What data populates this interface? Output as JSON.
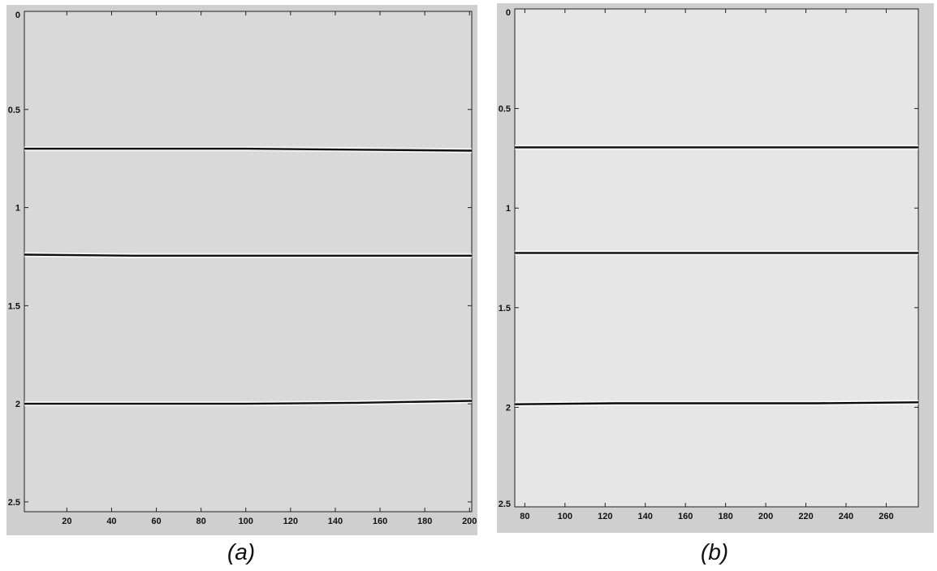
{
  "chart_data": [
    {
      "type": "line",
      "panel": "a",
      "caption": "(a)",
      "title": "",
      "xlabel": "",
      "ylabel": "",
      "y_axis_reversed": true,
      "xlim": [
        1,
        201
      ],
      "ylim": [
        0,
        2.55
      ],
      "x_ticks": [
        20,
        40,
        60,
        80,
        100,
        120,
        140,
        160,
        180,
        200
      ],
      "x_tick_labels": [
        "20",
        "40",
        "60",
        "80",
        "100",
        "120",
        "140",
        "160",
        "180",
        "200"
      ],
      "y_ticks": [
        0,
        0.5,
        1,
        1.5,
        2,
        2.5
      ],
      "y_tick_labels": [
        "0",
        "0.5",
        "1",
        "1.5",
        "2",
        "2.5"
      ],
      "grid": false,
      "background_color": "#d9d9d9",
      "line_color": "#111111",
      "series": [
        {
          "x": [
            1,
            50,
            100,
            150,
            201
          ],
          "y": [
            0.7,
            0.7,
            0.7,
            0.705,
            0.71
          ]
        },
        {
          "x": [
            1,
            50,
            100,
            150,
            201
          ],
          "y": [
            1.24,
            1.245,
            1.245,
            1.245,
            1.245
          ]
        },
        {
          "x": [
            1,
            50,
            100,
            150,
            201
          ],
          "y": [
            2.0,
            2.0,
            2.0,
            1.995,
            1.985
          ]
        }
      ]
    },
    {
      "type": "line",
      "panel": "b",
      "caption": "(b)",
      "title": "",
      "xlabel": "",
      "ylabel": "",
      "y_axis_reversed": true,
      "xlim": [
        75,
        276
      ],
      "ylim": [
        0,
        2.5
      ],
      "x_ticks": [
        80,
        100,
        120,
        140,
        160,
        180,
        200,
        220,
        240,
        260
      ],
      "x_tick_labels": [
        "80",
        "100",
        "120",
        "140",
        "160",
        "180",
        "200",
        "220",
        "240",
        "260"
      ],
      "y_ticks": [
        0,
        0.5,
        1,
        1.5,
        2,
        2.5
      ],
      "y_tick_labels": [
        "0",
        "0.5",
        "1",
        "1.5",
        "2",
        "2.5"
      ],
      "grid": false,
      "background_color": "#e6e6e6",
      "line_color": "#0a0a0a",
      "series": [
        {
          "x": [
            75,
            125,
            175,
            225,
            276
          ],
          "y": [
            0.695,
            0.695,
            0.695,
            0.695,
            0.695
          ]
        },
        {
          "x": [
            75,
            125,
            175,
            225,
            276
          ],
          "y": [
            1.225,
            1.225,
            1.225,
            1.225,
            1.225
          ]
        },
        {
          "x": [
            75,
            125,
            175,
            225,
            276
          ],
          "y": [
            1.985,
            1.98,
            1.98,
            1.98,
            1.975
          ]
        }
      ]
    }
  ]
}
